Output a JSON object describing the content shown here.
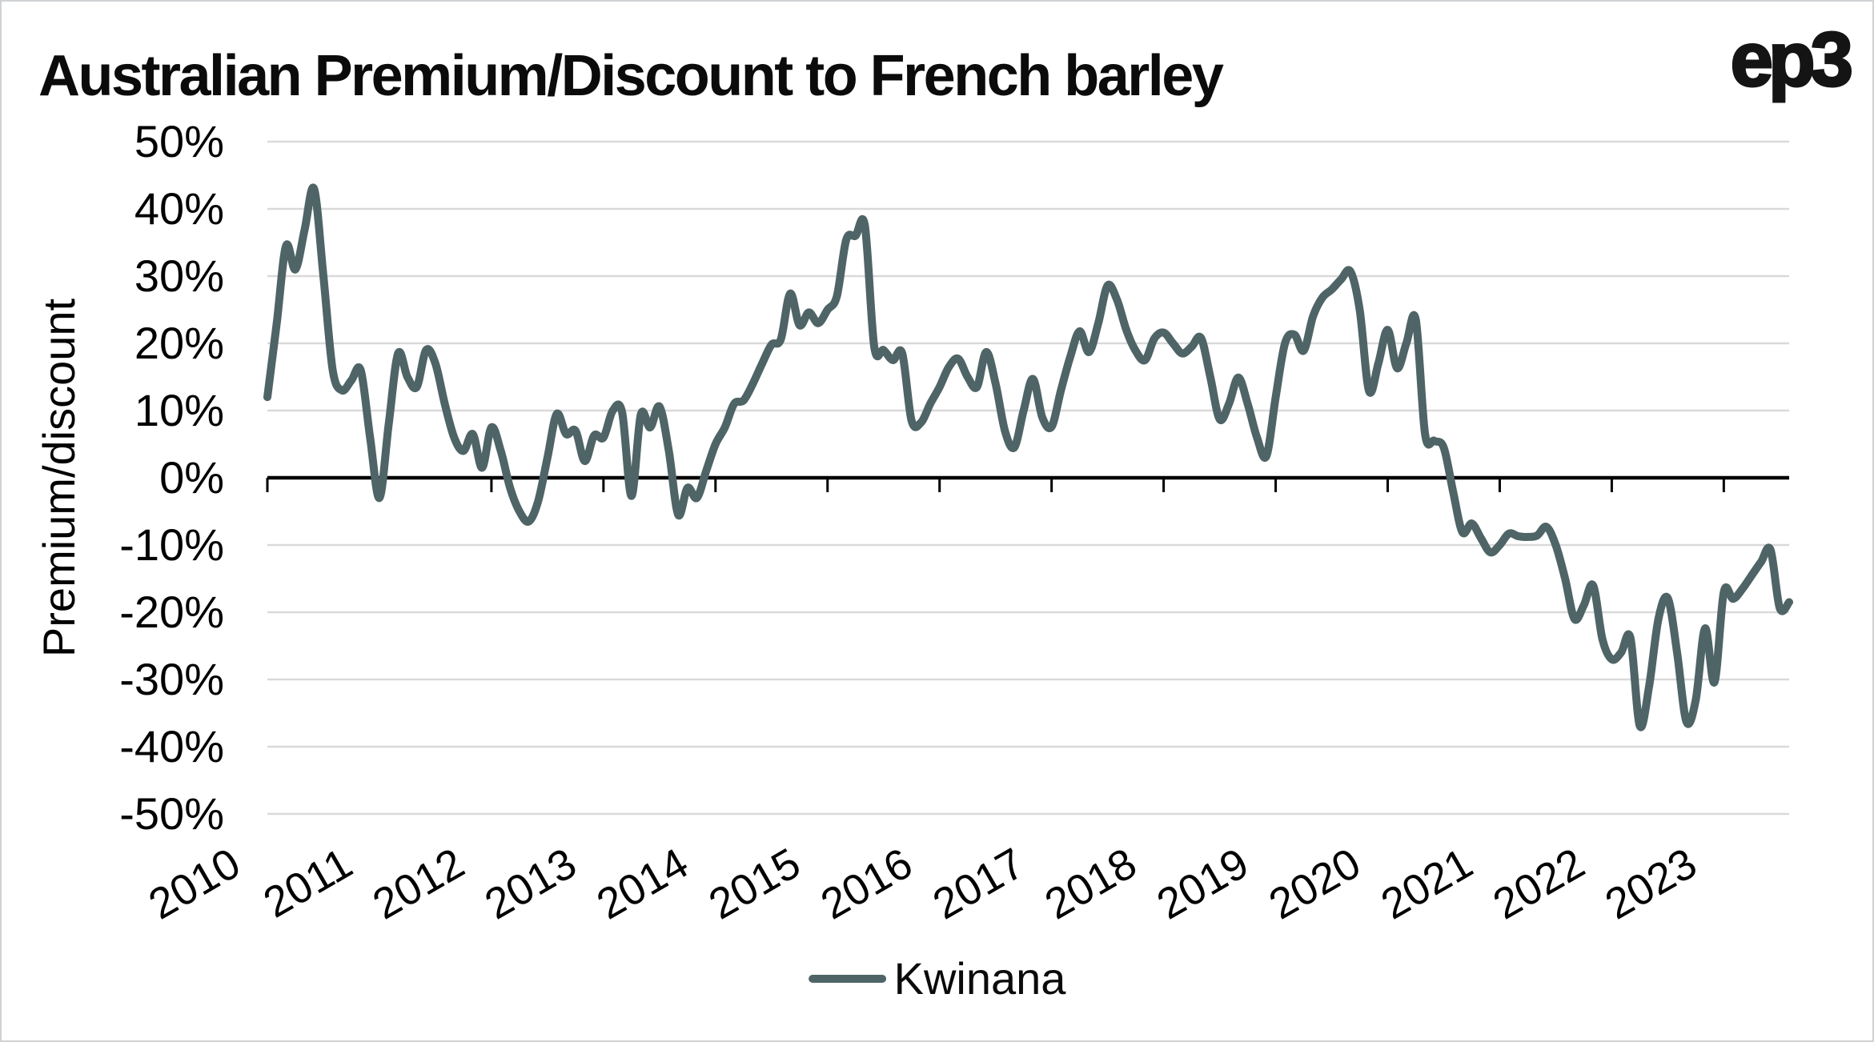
{
  "header": {
    "title": "Australian Premium/Discount to French barley",
    "logo": "ep3"
  },
  "legend": {
    "label": "Kwinana"
  },
  "colors": {
    "line": "#4f6466",
    "gridline": "#d9d9d9",
    "axis": "#000000",
    "text": "#000000",
    "card_border": "#cfd2d4",
    "background": "#ffffff"
  },
  "chart_data": {
    "type": "line",
    "title": "Australian Premium/Discount to French barley",
    "y_axis_title": "Premium/discount",
    "ylim": [
      -50,
      50
    ],
    "grid": "horizontal",
    "legend_position": "bottom",
    "x_start": "2010-01",
    "x_end": "2023-08",
    "x_frequency": "monthly",
    "x_tick_labels": [
      "2010",
      "2011",
      "2012",
      "2013",
      "2014",
      "2015",
      "2016",
      "2017",
      "2018",
      "2019",
      "2020",
      "2021",
      "2022",
      "2023"
    ],
    "y_ticks": [
      {
        "label": "50%",
        "value": 50
      },
      {
        "label": "40%",
        "value": 40
      },
      {
        "label": "30%",
        "value": 30
      },
      {
        "label": "20%",
        "value": 20
      },
      {
        "label": "10%",
        "value": 10
      },
      {
        "label": "0%",
        "value": 0
      },
      {
        "label": "-10%",
        "value": -10
      },
      {
        "label": "-20%",
        "value": -20
      },
      {
        "label": "-30%",
        "value": -30
      },
      {
        "label": "-40%",
        "value": -40
      },
      {
        "label": "-50%",
        "value": -50
      }
    ],
    "series": [
      {
        "name": "Kwinana",
        "color": "#4f6466",
        "unit": "percent",
        "values": [
          12,
          23,
          34.5,
          31,
          37,
          43,
          30,
          16,
          13,
          14.5,
          16,
          6,
          -3,
          8,
          18.5,
          15,
          13.5,
          19,
          17,
          11,
          6,
          4,
          6.5,
          1.5,
          7.5,
          4,
          -1.5,
          -5,
          -6.5,
          -3.5,
          3,
          9.5,
          6.5,
          7,
          2.5,
          6.3,
          6,
          10,
          9.7,
          -2.7,
          9.4,
          7.5,
          10.6,
          4,
          -5.5,
          -1.5,
          -3,
          1,
          5,
          7.5,
          11,
          11.5,
          14,
          17,
          19.8,
          20.6,
          27.4,
          22.7,
          24.6,
          23,
          25,
          27,
          35.4,
          36,
          37.5,
          19.5,
          19,
          17.5,
          18.5,
          8.5,
          8.2,
          11,
          13.5,
          16.5,
          17.7,
          15,
          13.5,
          18.7,
          14,
          7,
          4.5,
          10,
          14.7,
          9,
          7.6,
          13,
          18,
          21.8,
          18.7,
          23,
          28.6,
          26.5,
          22,
          18.9,
          17.5,
          20.7,
          21.6,
          20,
          18.5,
          19.5,
          20.8,
          15,
          8.7,
          11,
          14.9,
          11,
          6,
          3.2,
          12,
          20,
          21.3,
          18.9,
          24,
          26.8,
          28,
          29.5,
          30.7,
          25,
          12.9,
          17,
          22,
          16.3,
          20,
          23.6,
          6.5,
          5.5,
          4.5,
          -2,
          -8.1,
          -6.8,
          -9,
          -11.1,
          -10,
          -8.3,
          -8.7,
          -8.8,
          -8.6,
          -7.3,
          -10,
          -15,
          -21,
          -19,
          -16,
          -24,
          -27,
          -26,
          -23.8,
          -36.9,
          -31,
          -21,
          -17.9,
          -26,
          -36.3,
          -33,
          -22.4,
          -30.4,
          -17,
          -18,
          -16.5,
          -14.5,
          -12.5,
          -10.7,
          -19.4,
          -18.5
        ]
      }
    ]
  }
}
